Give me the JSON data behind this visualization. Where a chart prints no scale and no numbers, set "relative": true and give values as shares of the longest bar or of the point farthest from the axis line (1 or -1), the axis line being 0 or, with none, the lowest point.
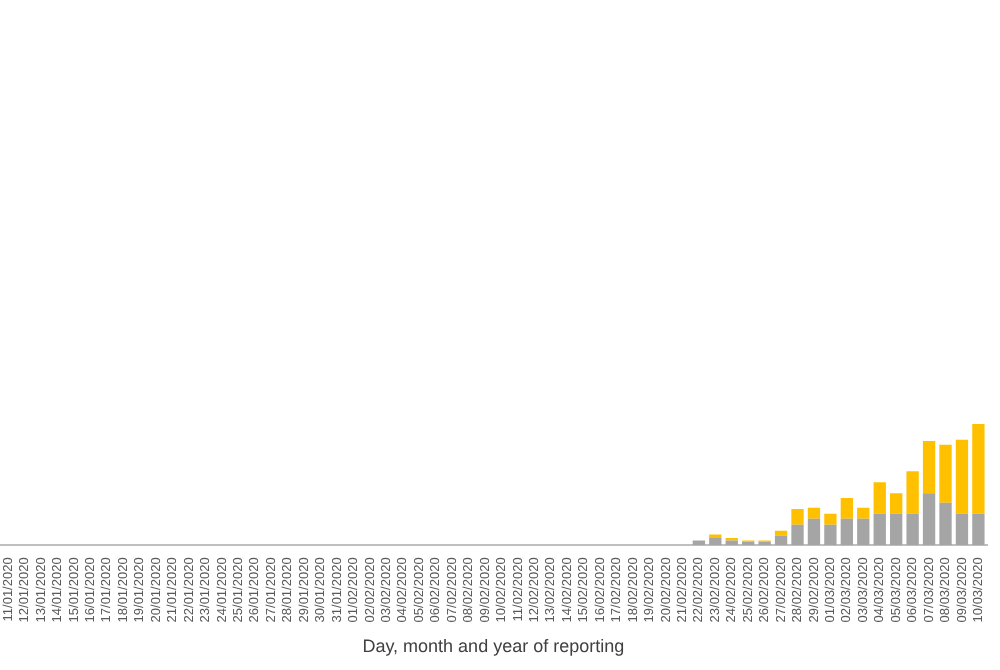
{
  "chart_data": {
    "type": "bar",
    "stacked": true,
    "relative": true,
    "xlabel": "Day, month and year of reporting",
    "legend": false,
    "grid": false,
    "categories": [
      "11/01/2020",
      "12/01/2020",
      "13/01/2020",
      "14/01/2020",
      "15/01/2020",
      "16/01/2020",
      "17/01/2020",
      "18/01/2020",
      "19/01/2020",
      "20/01/2020",
      "21/01/2020",
      "22/01/2020",
      "23/01/2020",
      "24/01/2020",
      "25/01/2020",
      "26/01/2020",
      "27/01/2020",
      "28/01/2020",
      "29/01/2020",
      "30/01/2020",
      "31/01/2020",
      "01/02/2020",
      "02/02/2020",
      "03/02/2020",
      "04/02/2020",
      "05/02/2020",
      "06/02/2020",
      "07/02/2020",
      "08/02/2020",
      "09/02/2020",
      "10/02/2020",
      "11/02/2020",
      "12/02/2020",
      "13/02/2020",
      "14/02/2020",
      "15/02/2020",
      "16/02/2020",
      "17/02/2020",
      "18/02/2020",
      "19/02/2020",
      "20/02/2020",
      "21/02/2020",
      "22/02/2020",
      "23/02/2020",
      "24/02/2020",
      "25/02/2020",
      "26/02/2020",
      "27/02/2020",
      "28/02/2020",
      "29/02/2020",
      "01/03/2020",
      "02/03/2020",
      "03/03/2020",
      "04/03/2020",
      "05/03/2020",
      "06/03/2020",
      "07/03/2020",
      "08/03/2020",
      "09/03/2020",
      "10/03/2020"
    ],
    "series": [
      {
        "color": "#a5a5a5",
        "values": [
          null,
          null,
          null,
          null,
          null,
          null,
          null,
          null,
          null,
          null,
          null,
          null,
          null,
          null,
          null,
          null,
          null,
          null,
          null,
          null,
          null,
          null,
          null,
          null,
          null,
          null,
          null,
          null,
          null,
          null,
          null,
          null,
          null,
          null,
          null,
          null,
          null,
          null,
          null,
          null,
          null,
          null,
          0.04,
          0.06,
          0.04,
          0.03,
          0.03,
          0.08,
          0.17,
          0.22,
          0.17,
          0.22,
          0.22,
          0.26,
          0.26,
          0.26,
          0.43,
          0.35,
          0.26,
          0.26
        ]
      },
      {
        "color": "#ffc000",
        "values": [
          null,
          null,
          null,
          null,
          null,
          null,
          null,
          null,
          null,
          null,
          null,
          null,
          null,
          null,
          null,
          null,
          null,
          null,
          null,
          null,
          null,
          null,
          null,
          null,
          null,
          null,
          null,
          null,
          null,
          null,
          null,
          null,
          null,
          null,
          null,
          null,
          null,
          null,
          null,
          null,
          null,
          null,
          null,
          0.03,
          0.02,
          0.01,
          0.01,
          0.04,
          0.13,
          0.09,
          0.09,
          0.17,
          0.09,
          0.26,
          0.17,
          0.35,
          0.43,
          0.48,
          0.61,
          0.74
        ]
      }
    ]
  }
}
